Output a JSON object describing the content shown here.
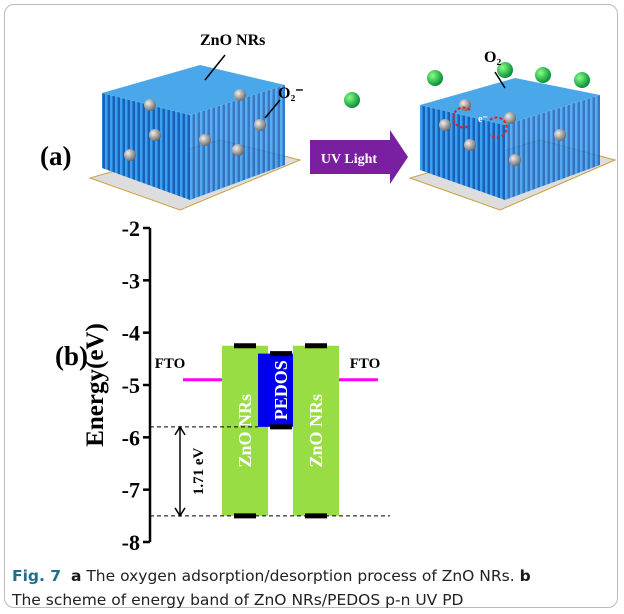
{
  "panel_a": {
    "label": "(a)",
    "nanorods_label": "ZnO NRs",
    "adsorbed_label": "O₂⁻",
    "light_label": "UV Light",
    "desorbed_label": "O₂",
    "electron_label": "e⁻"
  },
  "chart_data": {
    "type": "band-diagram",
    "label": "(b)",
    "y_label": "Energy(eV)",
    "ylim": [
      -8,
      -2
    ],
    "yticks": [
      -2,
      -3,
      -4,
      -5,
      -6,
      -7,
      -8
    ],
    "bands": [
      {
        "name": "ZnO NRs",
        "color": "#99dd44",
        "top": -4.25,
        "bottom": -7.5
      },
      {
        "name": "PEDOS",
        "color": "#0000ee",
        "top": -4.4,
        "bottom": -5.8
      },
      {
        "name": "ZnO NRs",
        "color": "#99dd44",
        "top": -4.25,
        "bottom": -7.5
      }
    ],
    "levels": [
      {
        "name": "FTO",
        "color": "#ff00ff",
        "value": -4.9
      },
      {
        "name": "FTO",
        "color": "#ff00ff",
        "value": -4.9
      }
    ],
    "gap_label": "1.71 eV"
  },
  "caption": {
    "figure": "Fig. 7",
    "part_a": "a",
    "text_a": "The oxygen adsorption/desorption process of ZnO NRs.",
    "part_b": "b",
    "text_b": "The scheme of energy band of ZnO NRs/PEDOS p-n UV PD"
  }
}
